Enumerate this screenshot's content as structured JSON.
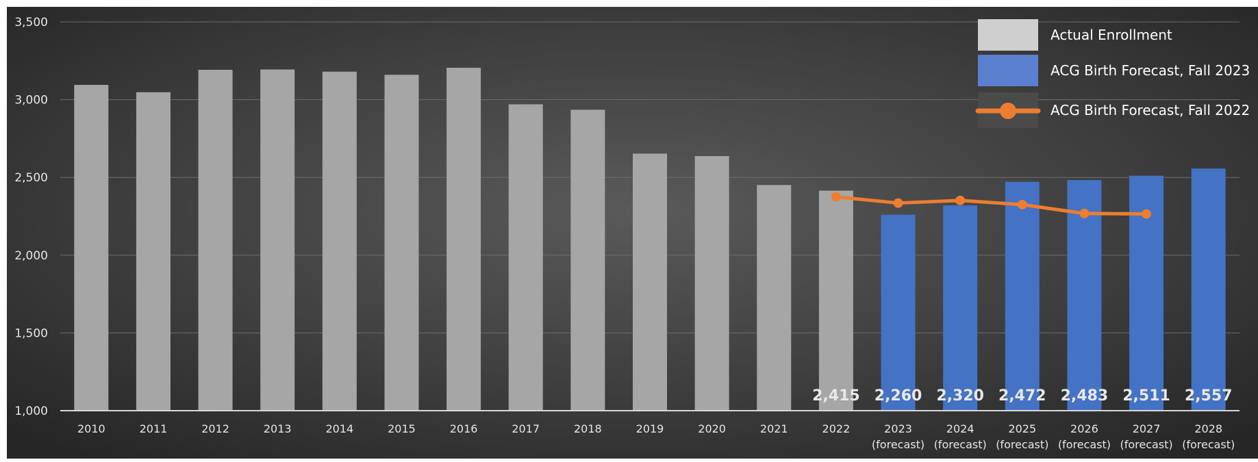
{
  "chart_data": {
    "type": "bar",
    "ylim": [
      1000,
      3500
    ],
    "y_ticks": [
      1000,
      1500,
      2000,
      2500,
      3000,
      3500
    ],
    "y_tick_labels": [
      "1,000",
      "1,500",
      "2,000",
      "2,500",
      "3,000",
      "3,500"
    ],
    "grid": true,
    "legend_position": "top-right",
    "categories": [
      [
        "2010"
      ],
      [
        "2011"
      ],
      [
        "2012"
      ],
      [
        "2013"
      ],
      [
        "2014"
      ],
      [
        "2015"
      ],
      [
        "2016"
      ],
      [
        "2017"
      ],
      [
        "2018"
      ],
      [
        "2019"
      ],
      [
        "2020"
      ],
      [
        "2021"
      ],
      [
        "2022"
      ],
      [
        "2023",
        "(forecast)"
      ],
      [
        "2024",
        "(forecast)"
      ],
      [
        "2025",
        "(forecast)"
      ],
      [
        "2026",
        "(forecast)"
      ],
      [
        "2027",
        "(forecast)"
      ],
      [
        "2028",
        "(forecast)"
      ]
    ],
    "series": [
      {
        "name": "Actual Enrollment",
        "type": "bar",
        "color": "#a6a6a6",
        "values": [
          3095,
          3048,
          3192,
          3194,
          3180,
          3160,
          3205,
          2970,
          2935,
          2653,
          2637,
          2451,
          2415,
          null,
          null,
          null,
          null,
          null,
          null
        ]
      },
      {
        "name": "ACG Birth Forecast, Fall 2023",
        "type": "bar",
        "color": "#4472c4",
        "values": [
          null,
          null,
          null,
          null,
          null,
          null,
          null,
          null,
          null,
          null,
          null,
          null,
          null,
          2260,
          2320,
          2472,
          2483,
          2511,
          2557
        ]
      },
      {
        "name": "ACG Birth Forecast, Fall 2022",
        "type": "line",
        "color": "#ed7d31",
        "values": [
          null,
          null,
          null,
          null,
          null,
          null,
          null,
          null,
          null,
          null,
          null,
          null,
          2375,
          2335,
          2352,
          2325,
          2268,
          2265,
          null
        ]
      }
    ],
    "data_labels": [
      {
        "index": 12,
        "text": "2,415"
      },
      {
        "index": 13,
        "text": "2,260"
      },
      {
        "index": 14,
        "text": "2,320"
      },
      {
        "index": 15,
        "text": "2,472"
      },
      {
        "index": 16,
        "text": "2,483"
      },
      {
        "index": 17,
        "text": "2,511"
      },
      {
        "index": 18,
        "text": "2,557"
      }
    ]
  }
}
